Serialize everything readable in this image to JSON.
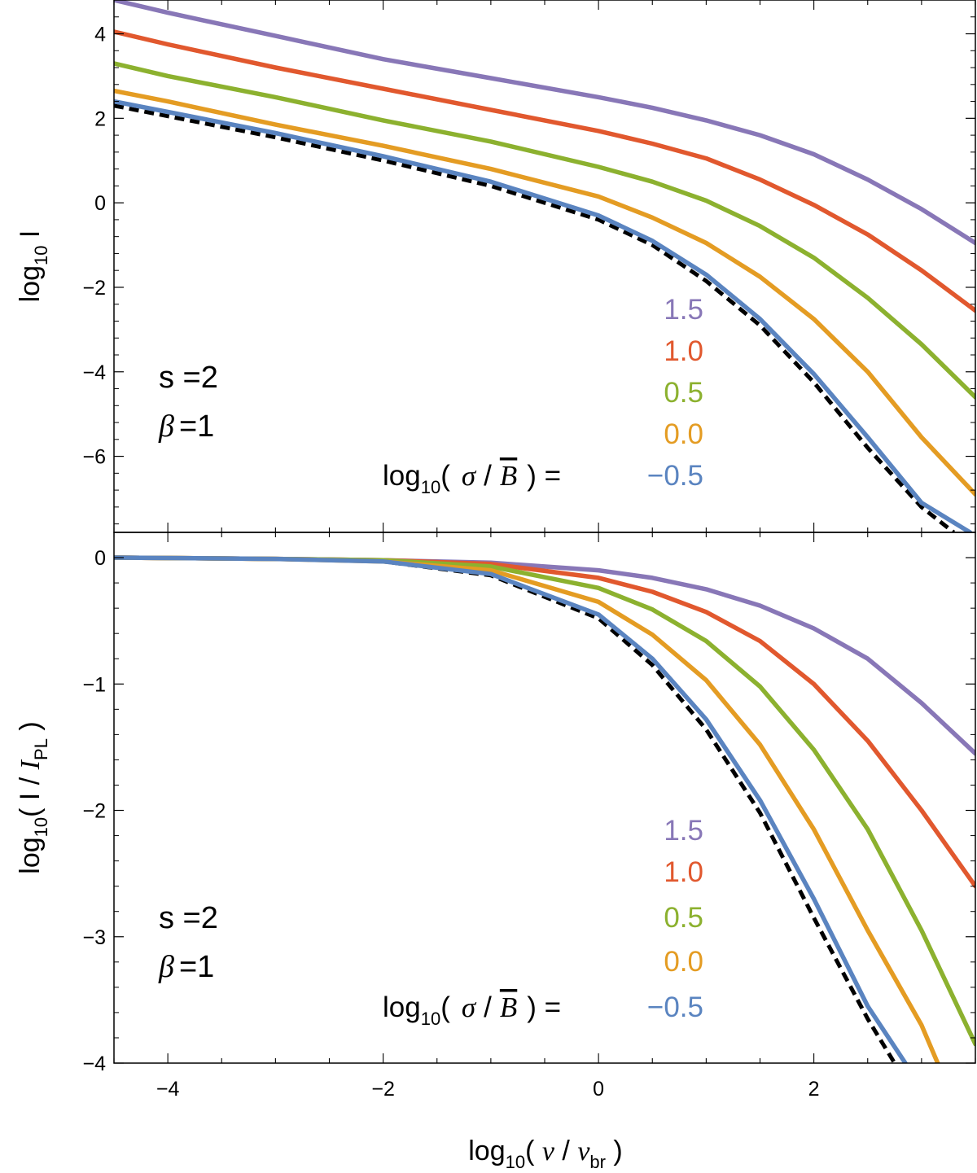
{
  "chart_data": [
    {
      "type": "line",
      "panel": "top",
      "ylabel": "log10 I",
      "xlabel": "",
      "xlim": [
        -4.5,
        3.5
      ],
      "ylim": [
        -7.8,
        4.8
      ],
      "yticks_major": [
        4,
        2,
        0,
        -2,
        -4,
        -6
      ],
      "ytick_labels": [
        "4",
        "2",
        "0",
        "−2",
        "−4",
        "−6"
      ],
      "xtick_labels": [],
      "annotation": {
        "s_text": "s =2",
        "beta_symbol": "β",
        "beta_value": "=1"
      },
      "legend": {
        "prefix_text": "log",
        "prefix_sub": "10",
        "prefix_open": "(",
        "sigma": "σ",
        "slash": "/",
        "bbar": "B",
        "prefix_close": ") =",
        "entries": [
          "1.5",
          "1.0",
          "0.5",
          "0.0",
          "−0.5"
        ]
      },
      "series": [
        {
          "name": "1.5",
          "color": "#8877b7",
          "dashed": false,
          "x": [
            -4.5,
            -4,
            -3,
            -2,
            -1,
            0,
            0.5,
            1,
            1.5,
            2,
            2.5,
            3,
            3.5
          ],
          "y": [
            4.8,
            4.5,
            3.95,
            3.4,
            2.95,
            2.5,
            2.25,
            1.95,
            1.6,
            1.15,
            0.55,
            -0.15,
            -0.95
          ]
        },
        {
          "name": "1.0",
          "color": "#e1582e",
          "dashed": false,
          "x": [
            -4.5,
            -4,
            -3,
            -2,
            -1,
            0,
            0.5,
            1,
            1.5,
            2,
            2.5,
            3,
            3.5
          ],
          "y": [
            4.05,
            3.75,
            3.2,
            2.7,
            2.2,
            1.7,
            1.4,
            1.05,
            0.55,
            -0.05,
            -0.75,
            -1.6,
            -2.55
          ]
        },
        {
          "name": "0.5",
          "color": "#8cb12f",
          "dashed": false,
          "x": [
            -4.5,
            -4,
            -3,
            -2,
            -1,
            0,
            0.5,
            1,
            1.5,
            2,
            2.5,
            3,
            3.5
          ],
          "y": [
            3.3,
            3.0,
            2.5,
            1.95,
            1.45,
            0.85,
            0.5,
            0.05,
            -0.55,
            -1.3,
            -2.25,
            -3.35,
            -4.6
          ]
        },
        {
          "name": "0.0",
          "color": "#e49c23",
          "dashed": false,
          "x": [
            -4.5,
            -4,
            -3,
            -2,
            -1,
            0,
            0.5,
            1,
            1.5,
            2,
            2.5,
            3,
            3.5
          ],
          "y": [
            2.65,
            2.4,
            1.85,
            1.35,
            0.8,
            0.15,
            -0.35,
            -0.95,
            -1.75,
            -2.75,
            -4.0,
            -5.55,
            -6.9
          ]
        },
        {
          "name": "−0.5",
          "color": "#5a84c0",
          "dashed": false,
          "x": [
            -4.5,
            -4,
            -3,
            -2,
            -1,
            0,
            0.5,
            1,
            1.5,
            2,
            2.5,
            3,
            3.45
          ],
          "y": [
            2.4,
            2.15,
            1.65,
            1.1,
            0.5,
            -0.3,
            -0.9,
            -1.7,
            -2.75,
            -4.05,
            -5.55,
            -7.1,
            -7.8
          ]
        },
        {
          "name": "dashed",
          "color": "#000000",
          "dashed": true,
          "x": [
            -4.5,
            -4,
            -3,
            -2,
            -1,
            0,
            0.5,
            1,
            1.5,
            2,
            2.5,
            3,
            3.3
          ],
          "y": [
            2.3,
            2.05,
            1.55,
            1.0,
            0.4,
            -0.4,
            -1.0,
            -1.85,
            -2.9,
            -4.25,
            -5.8,
            -7.2,
            -7.8
          ]
        }
      ]
    },
    {
      "type": "line",
      "panel": "bottom",
      "ylabel": "log10( I / IPL )",
      "xlabel": "log10( ν / νbr )",
      "xlim": [
        -4.5,
        3.5
      ],
      "ylim": [
        -4,
        0.2
      ],
      "yticks_major": [
        0,
        -1,
        -2,
        -3,
        -4
      ],
      "ytick_labels": [
        "0",
        "−1",
        "−2",
        "−3",
        "−4"
      ],
      "xticks_major": [
        -4,
        -2,
        0,
        2
      ],
      "xtick_labels": [
        "−4",
        "−2",
        "0",
        "2"
      ],
      "annotation": {
        "s_text": "s =2",
        "beta_symbol": "β",
        "beta_value": "=1"
      },
      "legend": {
        "prefix_text": "log",
        "prefix_sub": "10",
        "prefix_open": "(",
        "sigma": "σ",
        "slash": "/",
        "bbar": "B",
        "prefix_close": ") =",
        "entries": [
          "1.5",
          "1.0",
          "0.5",
          "0.0",
          "−0.5"
        ]
      },
      "series": [
        {
          "name": "1.5",
          "color": "#8877b7",
          "dashed": false,
          "x": [
            -4.5,
            -3,
            -2,
            -1,
            0,
            0.5,
            1,
            1.5,
            2,
            2.5,
            3,
            3.5
          ],
          "y": [
            0.0,
            -0.01,
            -0.02,
            -0.04,
            -0.1,
            -0.16,
            -0.25,
            -0.38,
            -0.56,
            -0.8,
            -1.15,
            -1.55
          ]
        },
        {
          "name": "1.0",
          "color": "#e1582e",
          "dashed": false,
          "x": [
            -4.5,
            -3,
            -2,
            -1,
            0,
            0.5,
            1,
            1.5,
            2,
            2.5,
            3,
            3.5
          ],
          "y": [
            0.0,
            -0.01,
            -0.02,
            -0.05,
            -0.16,
            -0.27,
            -0.43,
            -0.66,
            -1.0,
            -1.45,
            -2.0,
            -2.6
          ]
        },
        {
          "name": "0.5",
          "color": "#8cb12f",
          "dashed": false,
          "x": [
            -4.5,
            -3,
            -2,
            -1,
            0,
            0.5,
            1,
            1.5,
            2,
            2.5,
            3,
            3.5
          ],
          "y": [
            0.0,
            -0.01,
            -0.02,
            -0.07,
            -0.24,
            -0.41,
            -0.66,
            -1.02,
            -1.52,
            -2.15,
            -2.95,
            -3.85
          ]
        },
        {
          "name": "0.0",
          "color": "#e49c23",
          "dashed": false,
          "x": [
            -4.5,
            -3,
            -2,
            -1,
            0,
            0.5,
            1,
            1.5,
            2,
            2.5,
            3,
            3.15
          ],
          "y": [
            0.0,
            -0.01,
            -0.03,
            -0.1,
            -0.35,
            -0.61,
            -0.97,
            -1.48,
            -2.15,
            -2.95,
            -3.7,
            -4.0
          ]
        },
        {
          "name": "−0.5",
          "color": "#5a84c0",
          "dashed": false,
          "x": [
            -4.5,
            -3,
            -2,
            -1,
            0,
            0.5,
            1,
            1.5,
            2,
            2.5,
            2.85
          ],
          "y": [
            0.0,
            -0.01,
            -0.03,
            -0.13,
            -0.45,
            -0.8,
            -1.28,
            -1.92,
            -2.7,
            -3.55,
            -4.0
          ]
        },
        {
          "name": "dashed",
          "color": "#000000",
          "dashed": true,
          "x": [
            -4.5,
            -3,
            -2,
            -1,
            0,
            0.5,
            1,
            1.5,
            2,
            2.5,
            2.75
          ],
          "y": [
            0.0,
            -0.01,
            -0.03,
            -0.14,
            -0.48,
            -0.85,
            -1.36,
            -2.02,
            -2.85,
            -3.65,
            -4.0
          ]
        }
      ]
    }
  ]
}
